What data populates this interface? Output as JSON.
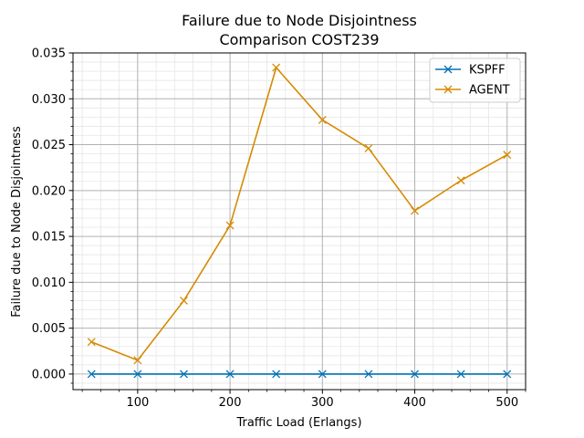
{
  "chart_data": {
    "type": "line",
    "title_line1": "Failure due to Node Disjointness",
    "title_line2": "Comparison COST239",
    "xlabel": "Traffic Load (Erlangs)",
    "ylabel": "Failure due to Node Disjointness",
    "x": [
      50,
      100,
      150,
      200,
      250,
      300,
      350,
      400,
      450,
      500
    ],
    "xlim": [
      30,
      520
    ],
    "ylim": [
      -0.0017,
      0.035
    ],
    "x_ticks": [
      100,
      200,
      300,
      400,
      500
    ],
    "y_ticks": [
      0.0,
      0.005,
      0.01,
      0.015,
      0.02,
      0.025,
      0.03,
      0.035
    ],
    "x_tick_labels": [
      "100",
      "200",
      "300",
      "400",
      "500"
    ],
    "y_tick_labels": [
      "0.000",
      "0.005",
      "0.010",
      "0.015",
      "0.020",
      "0.025",
      "0.030",
      "0.035"
    ],
    "grid": true,
    "minor_grid": true,
    "legend_position": "top-right",
    "series": [
      {
        "name": "KSPFF",
        "color": "#0072b2",
        "marker": "x",
        "values": [
          0,
          0,
          0,
          0,
          0,
          0,
          0,
          0,
          0,
          0
        ]
      },
      {
        "name": "AGENT",
        "color": "#d68a00",
        "marker": "x",
        "values": [
          0.0035,
          0.0015,
          0.008,
          0.0162,
          0.0334,
          0.0277,
          0.0246,
          0.0178,
          0.0211,
          0.0239
        ]
      }
    ]
  }
}
